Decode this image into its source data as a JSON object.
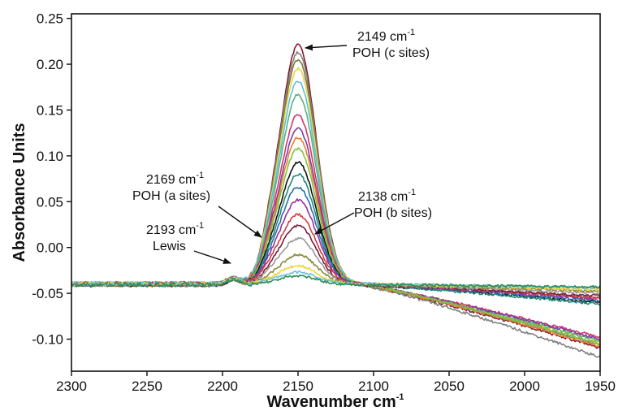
{
  "chart_data": {
    "type": "line",
    "title": "",
    "xlabel": "Wavenumber cm",
    "xlabel_sup": "-1",
    "ylabel": "Absorbance Units",
    "xlim": [
      2300,
      1950
    ],
    "ylim": [
      -0.135,
      0.255
    ],
    "x_reversed": true,
    "grid": false,
    "legend": "none",
    "x_ticks": [
      2300,
      2250,
      2200,
      2150,
      2100,
      2050,
      2000,
      1950
    ],
    "x_tick_labels": [
      "2300",
      "2250",
      "2200",
      "2150",
      "2100",
      "2050",
      "2000",
      "1950"
    ],
    "y_ticks": [
      0.25,
      0.2,
      0.15,
      0.1,
      0.05,
      0.0,
      -0.05,
      -0.1
    ],
    "y_tick_labels": [
      "0.25",
      "0.20",
      "0.15",
      "0.10",
      "0.05",
      "0.00",
      "-0.05",
      "-0.10"
    ],
    "peak_center": 2150,
    "series": [
      {
        "peak": 0.221,
        "tail": -0.11,
        "color": "#8B1A2E"
      },
      {
        "peak": 0.213,
        "tail": -0.12,
        "color": "#808080"
      },
      {
        "peak": 0.205,
        "tail": -0.107,
        "color": "#7A7A3A"
      },
      {
        "peak": 0.195,
        "tail": -0.103,
        "color": "#E8D44D"
      },
      {
        "peak": 0.182,
        "tail": -0.106,
        "color": "#5BC0DE"
      },
      {
        "peak": 0.167,
        "tail": -0.102,
        "color": "#5DAF7D"
      },
      {
        "peak": 0.145,
        "tail": -0.098,
        "color": "#D6336C"
      },
      {
        "peak": 0.13,
        "tail": -0.1,
        "color": "#7B3FA0"
      },
      {
        "peak": 0.12,
        "tail": -0.108,
        "color": "#E8802A"
      },
      {
        "peak": 0.108,
        "tail": -0.105,
        "color": "#7DC242"
      },
      {
        "peak": 0.093,
        "tail": -0.06,
        "color": "#111111"
      },
      {
        "peak": 0.08,
        "tail": -0.062,
        "color": "#1F8A7A"
      },
      {
        "peak": 0.066,
        "tail": -0.058,
        "color": "#2B6CB0"
      },
      {
        "peak": 0.052,
        "tail": -0.056,
        "color": "#9B2FA0"
      },
      {
        "peak": 0.036,
        "tail": -0.055,
        "color": "#D23C3C"
      },
      {
        "peak": 0.024,
        "tail": -0.053,
        "color": "#7A1F3D"
      },
      {
        "peak": 0.01,
        "tail": -0.05,
        "color": "#999999"
      },
      {
        "peak": -0.008,
        "tail": -0.048,
        "color": "#8A8A3A"
      },
      {
        "peak": -0.02,
        "tail": -0.046,
        "color": "#F2D43A"
      },
      {
        "peak": -0.027,
        "tail": -0.044,
        "color": "#6FC3D9"
      },
      {
        "peak": -0.031,
        "tail": -0.043,
        "color": "#2E8B57"
      }
    ]
  },
  "annotations": [
    {
      "line1": "2149 cm",
      "sup": "-1",
      "line2": "POH (c sites)"
    },
    {
      "line1": "2169 cm",
      "sup": "-1",
      "line2": "POH (a sites)"
    },
    {
      "line1": "2138 cm",
      "sup": "-1",
      "line2": "POH (b sites)"
    },
    {
      "line1": "2193 cm",
      "sup": "-1",
      "line2": "Lewis"
    }
  ]
}
